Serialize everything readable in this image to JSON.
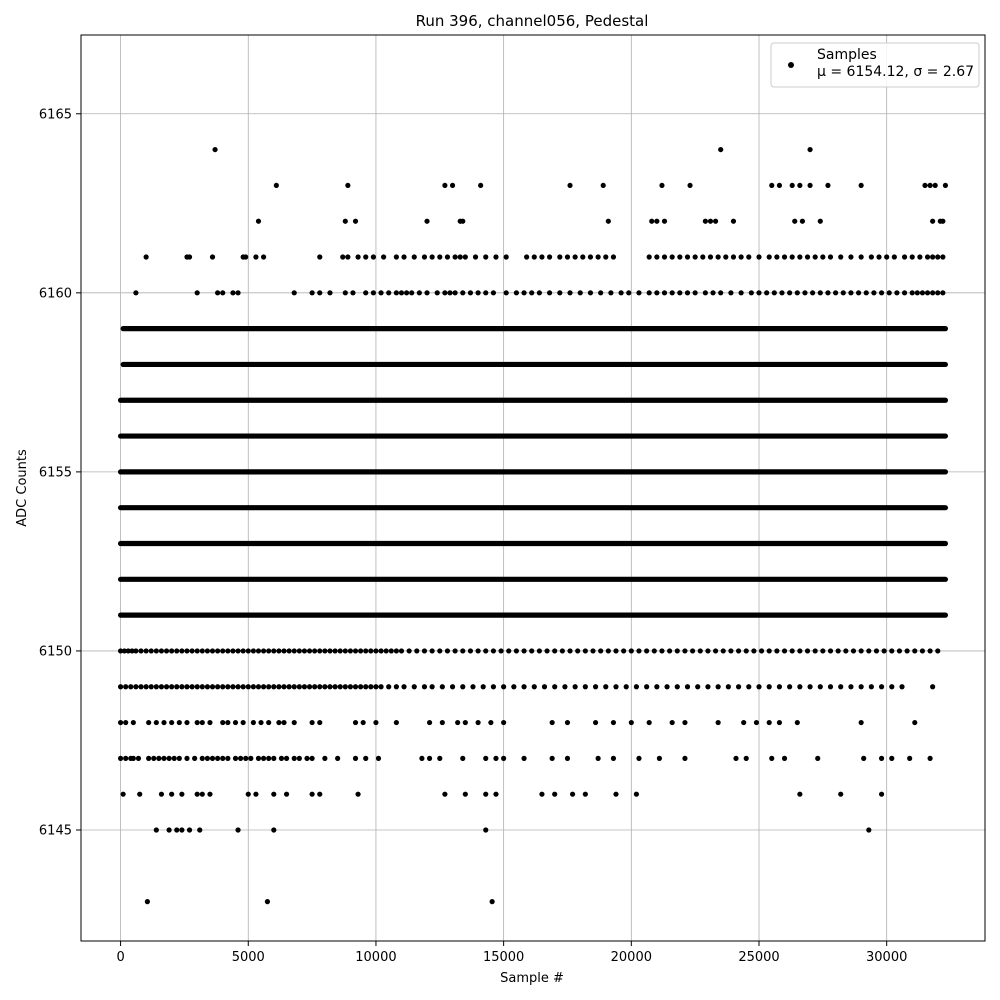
{
  "chart_data": {
    "type": "scatter",
    "title": "Run 396, channel056, Pedestal",
    "xlabel": "Sample #",
    "ylabel": "ADC Counts",
    "xlim": [
      -1550,
      33850
    ],
    "ylim": [
      6141.9,
      6167.2
    ],
    "xticks": [
      0,
      5000,
      10000,
      15000,
      20000,
      25000,
      30000
    ],
    "yticks": [
      6145,
      6150,
      6155,
      6160,
      6165
    ],
    "grid": true,
    "legend_position": "top-right",
    "marker_color": "#000000",
    "series": [
      {
        "name": "Samples",
        "n_samples": 32300,
        "mean": 6154.12,
        "sigma": 2.67,
        "levels": [
          {
            "y": 6143,
            "x": [
              1050,
              5750,
              14550
            ]
          },
          {
            "y": 6145,
            "x": [
              1400,
              1900,
              2200,
              2400,
              2700,
              3100,
              4600,
              6000,
              14300,
              29300
            ]
          },
          {
            "y": 6146,
            "x": [
              100,
              750,
              1600,
              2000,
              2400,
              3000,
              3200,
              3500,
              5000,
              5300,
              6000,
              6500,
              7500,
              7800,
              9300,
              12700,
              13500,
              14300,
              14700,
              16500,
              17000,
              17700,
              18200,
              19400,
              20200,
              26600,
              28200,
              29800
            ]
          },
          {
            "y": 6147,
            "x": [
              0,
              200,
              400,
              500,
              700,
              1100,
              1300,
              1500,
              1700,
              1900,
              2100,
              2300,
              2600,
              2900,
              3200,
              3400,
              3600,
              3800,
              4000,
              4200,
              4500,
              4700,
              4900,
              5100,
              5400,
              5600,
              5800,
              6000,
              6300,
              6500,
              6800,
              7000,
              7300,
              7500,
              8000,
              8500,
              9200,
              9600,
              10100,
              11800,
              12100,
              12500,
              13400,
              14300,
              14700,
              15000,
              15800,
              16900,
              17500,
              18700,
              19300,
              20300,
              21100,
              22100,
              24100,
              24500,
              25500,
              26000,
              27300,
              29100,
              29800,
              30200,
              30900,
              31700
            ]
          },
          {
            "y": 6148,
            "x": [
              0,
              200,
              500,
              1100,
              1400,
              1700,
              2000,
              2300,
              2600,
              3000,
              3200,
              3500,
              4000,
              4200,
              4500,
              4800,
              5200,
              5500,
              5800,
              6200,
              6400,
              6800,
              7500,
              7800,
              9200,
              9500,
              10000,
              10800,
              12100,
              12600,
              13200,
              13500,
              14000,
              14500,
              15000,
              16900,
              17500,
              18600,
              19300,
              20000,
              20700,
              21600,
              22100,
              23400,
              24400,
              24900,
              25400,
              25800,
              26500,
              29000,
              31100
            ]
          },
          {
            "y": 6149,
            "x": [
              0,
              200,
              400,
              600,
              800,
              1000,
              1200,
              1400,
              1600,
              1800,
              2000,
              2200,
              2400,
              2600,
              2800,
              3000,
              3200,
              3400,
              3600,
              3800,
              4000,
              4200,
              4400,
              4600,
              4800,
              5000,
              5200,
              5400,
              5600,
              5800,
              6000,
              6200,
              6400,
              6600,
              6800,
              7000,
              7200,
              7400,
              7600,
              7800,
              8000,
              8200,
              8400,
              8600,
              8800,
              9000,
              9200,
              9400,
              9600,
              9800,
              10000,
              10200,
              10500,
              10800,
              11100,
              11500,
              11900,
              12200,
              12600,
              13000,
              13400,
              13800,
              14200,
              14600,
              15000,
              15400,
              15800,
              16200,
              16600,
              17000,
              17400,
              17800,
              18200,
              18600,
              19000,
              19400,
              19800,
              20200,
              20600,
              21000,
              21400,
              21800,
              22200,
              22600,
              23000,
              23400,
              23800,
              24200,
              24600,
              25000,
              25400,
              25800,
              26200,
              26600,
              27000,
              27400,
              27800,
              28200,
              28600,
              29000,
              29400,
              29800,
              30200,
              30600,
              31800
            ]
          },
          {
            "y": 6150,
            "x": [
              0,
              150,
              300,
              450,
              600,
              800,
              1000,
              1200,
              1400,
              1600,
              1800,
              2000,
              2200,
              2400,
              2600,
              2800,
              3000,
              3200,
              3400,
              3600,
              3800,
              4000,
              4200,
              4400,
              4600,
              4800,
              5000,
              5200,
              5400,
              5600,
              5800,
              6000,
              6200,
              6400,
              6600,
              6800,
              7000,
              7200,
              7400,
              7600,
              7800,
              8000,
              8200,
              8400,
              8600,
              8800,
              9000,
              9200,
              9400,
              9600,
              9800,
              10000,
              10200,
              10400,
              10600,
              10800,
              11000,
              11300,
              11600,
              11900,
              12200,
              12500,
              12800,
              13100,
              13400,
              13700,
              14000,
              14300,
              14600,
              14900,
              15200,
              15500,
              15800,
              16100,
              16400,
              16700,
              17000,
              17300,
              17600,
              17900,
              18200,
              18500,
              18800,
              19100,
              19400,
              19700,
              20000,
              20300,
              20600,
              20900,
              21200,
              21500,
              21800,
              22100,
              22400,
              22700,
              23000,
              23300,
              23600,
              23900,
              24200,
              24500,
              24800,
              25100,
              25400,
              25700,
              26000,
              26300,
              26600,
              26900,
              27200,
              27500,
              27800,
              28100,
              28400,
              28700,
              29000,
              29300,
              29600,
              29900,
              30200,
              30500,
              30800,
              31100,
              31400,
              31700,
              32000
            ]
          },
          {
            "y": 6151,
            "x": [
              0,
              32300
            ]
          },
          {
            "y": 6152,
            "x": [
              0,
              32300
            ]
          },
          {
            "y": 6153,
            "x": [
              0,
              32300
            ]
          },
          {
            "y": 6154,
            "x": [
              0,
              32300
            ]
          },
          {
            "y": 6155,
            "x": [
              0,
              32300
            ]
          },
          {
            "y": 6156,
            "x": [
              0,
              32300
            ]
          },
          {
            "y": 6157,
            "x": [
              0,
              32300
            ]
          },
          {
            "y": 6158,
            "x": [
              100,
              32300
            ]
          },
          {
            "y": 6159,
            "x": [
              100,
              32300
            ]
          },
          {
            "y": 6160,
            "x": [
              600,
              3000,
              3800,
              4000,
              4400,
              4600,
              6800,
              7500,
              7800,
              8200,
              8800,
              9100,
              9600,
              9900,
              10200,
              10500,
              10800,
              11000,
              11200,
              11400,
              11700,
              12000,
              12400,
              12700,
              12900,
              13100,
              13400,
              13700,
              14000,
              14300,
              14600,
              15100,
              15500,
              15800,
              16100,
              16400,
              16800,
              17200,
              17600,
              18000,
              18400,
              18800,
              19200,
              19600,
              19900,
              20300,
              20700,
              21000,
              21300,
              21600,
              21900,
              22200,
              22500,
              22900,
              23200,
              23500,
              23900,
              24300,
              24700,
              25000,
              25300,
              25600,
              25900,
              26200,
              26500,
              26800,
              27100,
              27400,
              27700,
              28000,
              28300,
              28600,
              28900,
              29200,
              29500,
              29800,
              30100,
              30400,
              30700,
              31000,
              31200,
              31400,
              31600,
              31800,
              32000,
              32200
            ]
          },
          {
            "y": 6161,
            "x": [
              1000,
              2600,
              2700,
              3600,
              4800,
              4900,
              5300,
              5600,
              7800,
              8700,
              8900,
              9300,
              9600,
              9900,
              10300,
              10800,
              11100,
              11500,
              11900,
              12200,
              12500,
              12800,
              13100,
              13300,
              13500,
              13900,
              14300,
              14700,
              15100,
              15900,
              16200,
              16500,
              16800,
              17200,
              17500,
              17800,
              18100,
              18400,
              18700,
              19000,
              19300,
              20700,
              21000,
              21300,
              21600,
              21900,
              22200,
              22500,
              22800,
              23100,
              23400,
              23700,
              24000,
              24300,
              24600,
              25000,
              25400,
              25700,
              26000,
              26300,
              26600,
              26900,
              27200,
              27500,
              27800,
              28200,
              28600,
              29000,
              29400,
              29700,
              30000,
              30300,
              30700,
              31000,
              31300,
              31600,
              31800,
              32000,
              32200
            ]
          },
          {
            "y": 6162,
            "x": [
              5400,
              8800,
              9200,
              12000,
              13300,
              13400,
              19100,
              20800,
              21000,
              21300,
              22900,
              23100,
              23300,
              24000,
              26400,
              26700,
              27400,
              31800,
              32100,
              32200
            ]
          },
          {
            "y": 6163,
            "x": [
              6100,
              8900,
              12700,
              13000,
              14100,
              17600,
              18900,
              21200,
              22300,
              25500,
              25800,
              26300,
              26600,
              27000,
              27700,
              29000,
              31500,
              31700,
              31900,
              32300
            ]
          },
          {
            "y": 6164,
            "x": [
              3700,
              23500,
              27000
            ]
          }
        ]
      }
    ],
    "legend": {
      "title": "Samples",
      "stats_text": "μ = 6154.12, σ = 2.67"
    }
  }
}
